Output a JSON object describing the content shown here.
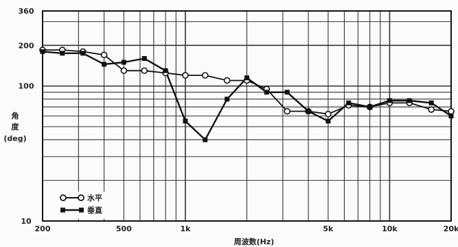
{
  "chart_data": {
    "type": "line",
    "title": "",
    "xlabel": "周波数(Hz)",
    "ylabel": [
      "角",
      "度",
      "(deg)"
    ],
    "x_scale": "log",
    "y_scale": "log",
    "xlim": [
      200,
      20000
    ],
    "ylim": [
      10,
      360
    ],
    "x_tick_labels": [
      {
        "value": 200,
        "label": "200"
      },
      {
        "value": 500,
        "label": "500"
      },
      {
        "value": 1000,
        "label": "1k"
      },
      {
        "value": 5000,
        "label": "5k"
      },
      {
        "value": 10000,
        "label": "10k"
      },
      {
        "value": 20000,
        "label": "20k"
      }
    ],
    "y_tick_labels": [
      {
        "value": 10,
        "label": "10"
      },
      {
        "value": 100,
        "label": "100"
      },
      {
        "value": 200,
        "label": "200"
      },
      {
        "value": 360,
        "label": "360"
      }
    ],
    "legend_position": "bottom-left",
    "series": [
      {
        "name": "水平",
        "marker": "open-circle",
        "color": "#111111",
        "x": [
          200,
          250,
          315,
          400,
          500,
          630,
          800,
          1000,
          1250,
          1600,
          2000,
          2500,
          3150,
          4000,
          5000,
          6300,
          8000,
          10000,
          12500,
          16000,
          20000
        ],
        "y": [
          185,
          185,
          180,
          170,
          130,
          130,
          125,
          120,
          120,
          110,
          110,
          95,
          65,
          65,
          62,
          72,
          70,
          75,
          75,
          67,
          65
        ]
      },
      {
        "name": "垂直",
        "marker": "filled-square",
        "color": "#111111",
        "x": [
          200,
          250,
          315,
          400,
          500,
          630,
          800,
          1000,
          1250,
          1600,
          2000,
          2500,
          3150,
          4000,
          5000,
          6300,
          8000,
          10000,
          12500,
          16000,
          20000
        ],
        "y": [
          180,
          175,
          175,
          145,
          150,
          160,
          130,
          55,
          40,
          80,
          115,
          90,
          90,
          65,
          55,
          75,
          70,
          78,
          78,
          75,
          60
        ]
      }
    ],
    "grid": true
  }
}
